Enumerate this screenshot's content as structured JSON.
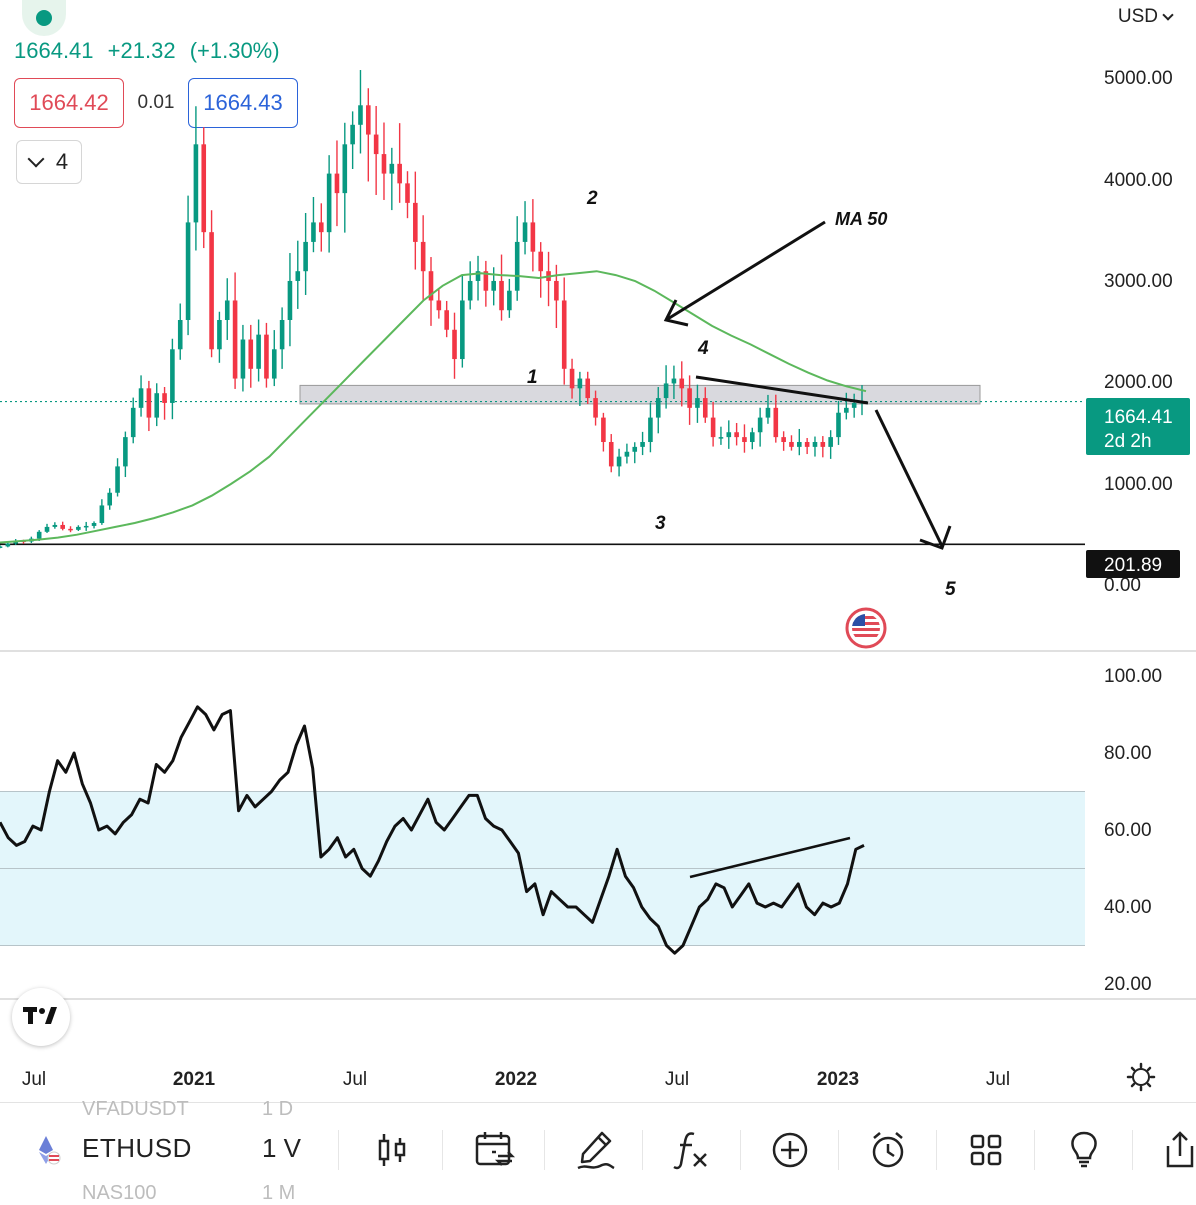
{
  "header": {
    "price": "1664.41",
    "change": "+21.32",
    "change_pct": "(+1.30%)",
    "sell_price": "1664.42",
    "spread": "0.01",
    "buy_price": "1664.43",
    "indicator_count": "4",
    "currency": "USD",
    "status_color": "#089981"
  },
  "price_axis": {
    "ticks": [
      "5000.00",
      "4000.00",
      "3000.00",
      "2000.00",
      "1000.00",
      "0.00"
    ],
    "last_price_label": "1664.41",
    "countdown_label": "2d 2h",
    "line_label": "201.89"
  },
  "rsi_axis": {
    "ticks": [
      "100.00",
      "80.00",
      "60.00",
      "40.00",
      "20.00"
    ]
  },
  "time_axis": {
    "ticks": [
      "Jul",
      "2021",
      "Jul",
      "2022",
      "Jul",
      "2023",
      "Jul"
    ]
  },
  "annotations": {
    "ma_label": "MA 50",
    "wave_labels": [
      "1",
      "2",
      "3",
      "4",
      "5"
    ]
  },
  "toolbar": {
    "symbol": "ETHUSD",
    "interval": "1 V",
    "ghost_above": "VFADUSDT",
    "ghost_above_interval": "1 D",
    "ghost_below": "NAS100",
    "ghost_below_interval": "1 M",
    "icons": [
      "candles-icon",
      "compare-icon",
      "drawing-icon",
      "indicators-icon",
      "add-icon",
      "alert-icon",
      "layout-icon",
      "ideas-icon",
      "share-icon"
    ]
  },
  "colors": {
    "up": "#089981",
    "down": "#f23645",
    "ma": "#5cb85c",
    "rsi_band": "#e3f6fb",
    "zone": "#d9d9de"
  },
  "chart_data": [
    {
      "type": "candlestick",
      "symbol": "ETHUSD",
      "interval": "1 V",
      "x_range": [
        "2020-04",
        "2023-07"
      ],
      "ylim": [
        0,
        5200
      ],
      "closes": [
        180,
        210,
        240,
        230,
        260,
        330,
        380,
        400,
        360,
        350,
        380,
        390,
        420,
        600,
        730,
        1000,
        1300,
        1600,
        1800,
        1500,
        1750,
        1650,
        2200,
        2500,
        3500,
        4300,
        3400,
        2200,
        2500,
        2700,
        1900,
        2300,
        2000,
        2350,
        1900,
        2200,
        2500,
        2900,
        3000,
        3300,
        3500,
        3400,
        4000,
        3800,
        4300,
        4500,
        4700,
        4400,
        4200,
        4000,
        4100,
        3900,
        3700,
        3300,
        3000,
        2700,
        2600,
        2400,
        2100,
        2700,
        2900,
        3000,
        2800,
        2900,
        2600,
        2800,
        3300,
        3500,
        3200,
        3000,
        2900,
        2700,
        2000,
        1800,
        1900,
        1700,
        1500,
        1250,
        1000,
        1100,
        1150,
        1200,
        1250,
        1500,
        1700,
        1850,
        1900,
        1800,
        1600,
        1700,
        1500,
        1300,
        1300,
        1350,
        1300,
        1250,
        1350,
        1500,
        1600,
        1300,
        1250,
        1200,
        1250,
        1200,
        1250,
        1200,
        1300,
        1550,
        1600,
        1650,
        1664.41
      ],
      "ma50": [
        220,
        235,
        250,
        270,
        300,
        340,
        380,
        420,
        470,
        530,
        600,
        700,
        820,
        950,
        1100,
        1300,
        1500,
        1700,
        1900,
        2100,
        2300,
        2500,
        2700,
        2850,
        2960,
        2980,
        2960,
        2950,
        2930,
        2960,
        2980,
        3000,
        2960,
        2900,
        2800,
        2680,
        2560,
        2440,
        2340,
        2250,
        2150,
        2050,
        1960,
        1880,
        1820,
        1770
      ],
      "horizontal_line": 201.89,
      "resistance_zone": [
        1640,
        1830
      ],
      "rsi": {
        "ylim": [
          20,
          100
        ],
        "band": [
          30,
          70
        ],
        "midline": 50,
        "values": [
          62,
          58,
          56,
          57,
          61,
          60,
          70,
          78,
          75,
          80,
          72,
          67,
          60,
          61,
          59,
          62,
          64,
          68,
          67,
          77,
          75,
          78,
          84,
          88,
          92,
          90,
          86,
          90,
          91,
          65,
          69,
          66,
          68,
          70,
          73,
          75,
          82,
          87,
          76,
          53,
          55,
          58,
          53,
          55,
          50,
          48,
          52,
          57,
          61,
          63,
          60,
          64,
          68,
          62,
          60,
          63,
          66,
          69,
          69,
          63,
          61,
          60,
          57,
          54,
          44,
          46,
          38,
          44,
          42,
          40,
          40,
          38,
          36,
          42,
          48,
          55,
          48,
          45,
          40,
          37,
          35,
          30,
          28,
          30,
          35,
          40,
          42,
          46,
          45,
          40,
          43,
          46,
          41,
          40,
          41,
          40,
          43,
          46,
          40,
          38,
          41,
          40,
          41,
          46,
          55,
          56
        ]
      }
    }
  ]
}
